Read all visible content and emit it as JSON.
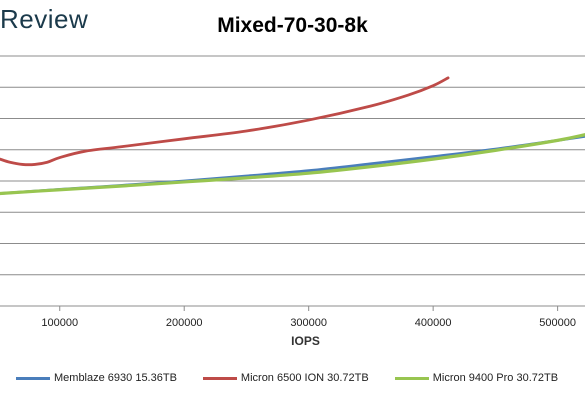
{
  "brand": {
    "text": "Review"
  },
  "chart_data": {
    "type": "line",
    "title": "Mixed-70-30-8k",
    "xlabel": "IOPS",
    "ylabel": "",
    "x_ticks": [
      100000,
      200000,
      300000,
      400000,
      500000
    ],
    "x_tick_labels": [
      "100000",
      "200000",
      "300000",
      "400000",
      "500000"
    ],
    "xlim": [
      52000,
      522000
    ],
    "ylim": [
      0,
      8
    ],
    "grid": true,
    "legend_position": "bottom",
    "series": [
      {
        "name": "Memblaze 6930 15.36TB",
        "color": "#4a7ebb",
        "x": [
          52000,
          100000,
          150000,
          200000,
          250000,
          300000,
          350000,
          400000,
          450000,
          500000,
          522000
        ],
        "y": [
          3.6,
          3.73,
          3.86,
          4.0,
          4.16,
          4.33,
          4.55,
          4.78,
          5.02,
          5.3,
          5.43
        ]
      },
      {
        "name": "Micron 6500 ION 30.72TB",
        "color": "#be4b48",
        "x": [
          52000,
          60000,
          70000,
          80000,
          90000,
          100000,
          120000,
          150000,
          200000,
          250000,
          300000,
          350000,
          380000,
          400000,
          412000
        ],
        "y": [
          4.7,
          4.6,
          4.53,
          4.53,
          4.6,
          4.75,
          4.95,
          5.1,
          5.35,
          5.6,
          5.95,
          6.4,
          6.75,
          7.05,
          7.3
        ]
      },
      {
        "name": "Micron 9400 Pro 30.72TB",
        "color": "#98c550",
        "x": [
          52000,
          100000,
          150000,
          200000,
          250000,
          300000,
          350000,
          400000,
          450000,
          500000,
          522000
        ],
        "y": [
          3.6,
          3.72,
          3.84,
          3.97,
          4.1,
          4.25,
          4.46,
          4.7,
          4.98,
          5.3,
          5.48
        ]
      }
    ]
  }
}
